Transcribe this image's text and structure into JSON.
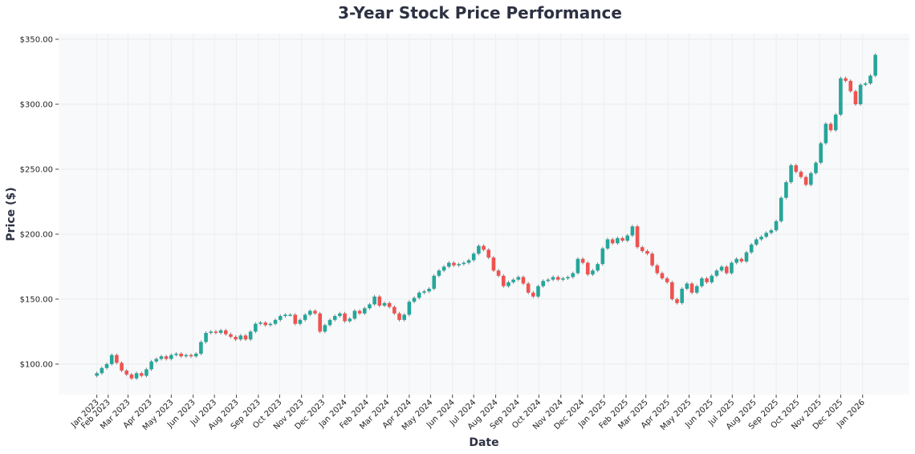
{
  "chart_data": {
    "type": "candlestick",
    "title": "3-Year Stock Price Performance",
    "xlabel": "Date",
    "ylabel": "Price ($)",
    "ylim": [
      76.5,
      354.3
    ],
    "xlim": [
      "2022-11-23",
      "2026-03-08"
    ],
    "yticks": [
      100,
      150,
      200,
      250,
      300,
      350
    ],
    "ytick_labels": [
      "$100.00",
      "$150.00",
      "$200.00",
      "$250.00",
      "$300.00",
      "$350.00"
    ],
    "xticks": [
      {
        "date": "2023-01-16",
        "label": "Jan 2023"
      },
      {
        "date": "2023-02-01",
        "label": "Feb 2023"
      },
      {
        "date": "2023-03-01",
        "label": "Mar 2023"
      },
      {
        "date": "2023-04-01",
        "label": "Apr 2023"
      },
      {
        "date": "2023-05-01",
        "label": "May 2023"
      },
      {
        "date": "2023-06-01",
        "label": "Jun 2023"
      },
      {
        "date": "2023-07-01",
        "label": "Jul 2023"
      },
      {
        "date": "2023-08-01",
        "label": "Aug 2023"
      },
      {
        "date": "2023-09-01",
        "label": "Sep 2023"
      },
      {
        "date": "2023-10-01",
        "label": "Oct 2023"
      },
      {
        "date": "2023-11-01",
        "label": "Nov 2023"
      },
      {
        "date": "2023-12-01",
        "label": "Dec 2023"
      },
      {
        "date": "2024-01-01",
        "label": "Jan 2024"
      },
      {
        "date": "2024-02-01",
        "label": "Feb 2024"
      },
      {
        "date": "2024-03-01",
        "label": "Mar 2024"
      },
      {
        "date": "2024-04-01",
        "label": "Apr 2024"
      },
      {
        "date": "2024-05-01",
        "label": "May 2024"
      },
      {
        "date": "2024-06-01",
        "label": "Jun 2024"
      },
      {
        "date": "2024-07-01",
        "label": "Jul 2024"
      },
      {
        "date": "2024-08-01",
        "label": "Aug 2024"
      },
      {
        "date": "2024-09-01",
        "label": "Sep 2024"
      },
      {
        "date": "2024-10-01",
        "label": "Oct 2024"
      },
      {
        "date": "2024-11-01",
        "label": "Nov 2024"
      },
      {
        "date": "2024-12-01",
        "label": "Dec 2024"
      },
      {
        "date": "2025-01-01",
        "label": "Jan 2025"
      },
      {
        "date": "2025-02-01",
        "label": "Feb 2025"
      },
      {
        "date": "2025-03-01",
        "label": "Mar 2025"
      },
      {
        "date": "2025-04-01",
        "label": "Apr 2025"
      },
      {
        "date": "2025-05-01",
        "label": "May 2025"
      },
      {
        "date": "2025-06-01",
        "label": "Jun 2025"
      },
      {
        "date": "2025-07-01",
        "label": "Jul 2025"
      },
      {
        "date": "2025-08-01",
        "label": "Aug 2025"
      },
      {
        "date": "2025-09-01",
        "label": "Sep 2025"
      },
      {
        "date": "2025-10-01",
        "label": "Oct 2025"
      },
      {
        "date": "2025-11-01",
        "label": "Nov 2025"
      },
      {
        "date": "2025-12-01",
        "label": "Dec 2025"
      },
      {
        "date": "2026-01-01",
        "label": "Jan 2026"
      }
    ],
    "grid": true,
    "colors": {
      "up": "#26a69a",
      "down": "#ef5350",
      "plot_bg": "#f8f9fb"
    },
    "open_first": 91,
    "closes": [
      [
        "2023-01-16",
        93
      ],
      [
        "2023-01-23",
        97
      ],
      [
        "2023-01-30",
        100
      ],
      [
        "2023-02-06",
        107
      ],
      [
        "2023-02-13",
        101
      ],
      [
        "2023-02-20",
        95
      ],
      [
        "2023-02-27",
        92
      ],
      [
        "2023-03-06",
        89
      ],
      [
        "2023-03-13",
        93
      ],
      [
        "2023-03-20",
        91
      ],
      [
        "2023-03-27",
        96
      ],
      [
        "2023-04-03",
        102
      ],
      [
        "2023-04-10",
        104
      ],
      [
        "2023-04-17",
        106
      ],
      [
        "2023-04-24",
        104
      ],
      [
        "2023-05-01",
        107
      ],
      [
        "2023-05-08",
        108
      ],
      [
        "2023-05-15",
        106
      ],
      [
        "2023-05-22",
        107
      ],
      [
        "2023-05-29",
        106
      ],
      [
        "2023-06-05",
        108
      ],
      [
        "2023-06-12",
        117
      ],
      [
        "2023-06-19",
        124
      ],
      [
        "2023-06-26",
        125
      ],
      [
        "2023-07-03",
        124
      ],
      [
        "2023-07-10",
        126
      ],
      [
        "2023-07-17",
        123
      ],
      [
        "2023-07-24",
        121
      ],
      [
        "2023-07-31",
        119
      ],
      [
        "2023-08-07",
        122
      ],
      [
        "2023-08-14",
        119
      ],
      [
        "2023-08-21",
        125
      ],
      [
        "2023-08-28",
        131
      ],
      [
        "2023-09-04",
        132
      ],
      [
        "2023-09-11",
        130
      ],
      [
        "2023-09-18",
        131
      ],
      [
        "2023-09-25",
        134
      ],
      [
        "2023-10-02",
        137
      ],
      [
        "2023-10-09",
        138
      ],
      [
        "2023-10-16",
        138
      ],
      [
        "2023-10-23",
        131
      ],
      [
        "2023-10-30",
        134
      ],
      [
        "2023-11-06",
        138
      ],
      [
        "2023-11-13",
        141
      ],
      [
        "2023-11-20",
        139
      ],
      [
        "2023-11-27",
        125
      ],
      [
        "2023-12-04",
        130
      ],
      [
        "2023-12-11",
        134
      ],
      [
        "2023-12-18",
        137
      ],
      [
        "2023-12-25",
        139
      ],
      [
        "2024-01-01",
        133
      ],
      [
        "2024-01-08",
        135
      ],
      [
        "2024-01-15",
        141
      ],
      [
        "2024-01-22",
        139
      ],
      [
        "2024-01-29",
        143
      ],
      [
        "2024-02-05",
        146
      ],
      [
        "2024-02-12",
        152
      ],
      [
        "2024-02-19",
        145
      ],
      [
        "2024-02-26",
        147
      ],
      [
        "2024-03-04",
        144
      ],
      [
        "2024-03-11",
        139
      ],
      [
        "2024-03-18",
        134
      ],
      [
        "2024-03-25",
        138
      ],
      [
        "2024-04-01",
        148
      ],
      [
        "2024-04-08",
        151
      ],
      [
        "2024-04-15",
        155
      ],
      [
        "2024-04-22",
        156
      ],
      [
        "2024-04-29",
        158
      ],
      [
        "2024-05-06",
        168
      ],
      [
        "2024-05-13",
        172
      ],
      [
        "2024-05-20",
        175
      ],
      [
        "2024-05-27",
        178
      ],
      [
        "2024-06-03",
        176
      ],
      [
        "2024-06-10",
        177
      ],
      [
        "2024-06-17",
        178
      ],
      [
        "2024-06-24",
        180
      ],
      [
        "2024-07-01",
        185
      ],
      [
        "2024-07-08",
        191
      ],
      [
        "2024-07-15",
        188
      ],
      [
        "2024-07-22",
        182
      ],
      [
        "2024-07-29",
        172
      ],
      [
        "2024-08-05",
        168
      ],
      [
        "2024-08-12",
        160
      ],
      [
        "2024-08-19",
        163
      ],
      [
        "2024-08-26",
        165
      ],
      [
        "2024-09-02",
        167
      ],
      [
        "2024-09-09",
        162
      ],
      [
        "2024-09-16",
        155
      ],
      [
        "2024-09-23",
        152
      ],
      [
        "2024-09-30",
        160
      ],
      [
        "2024-10-07",
        164
      ],
      [
        "2024-10-14",
        165
      ],
      [
        "2024-10-21",
        167
      ],
      [
        "2024-10-28",
        165
      ],
      [
        "2024-11-04",
        166
      ],
      [
        "2024-11-11",
        167
      ],
      [
        "2024-11-18",
        170
      ],
      [
        "2024-11-25",
        181
      ],
      [
        "2024-12-02",
        178
      ],
      [
        "2024-12-09",
        169
      ],
      [
        "2024-12-16",
        172
      ],
      [
        "2024-12-23",
        177
      ],
      [
        "2024-12-30",
        189
      ],
      [
        "2025-01-06",
        196
      ],
      [
        "2025-01-13",
        193
      ],
      [
        "2025-01-20",
        197
      ],
      [
        "2025-01-27",
        195
      ],
      [
        "2025-02-03",
        199
      ],
      [
        "2025-02-10",
        206
      ],
      [
        "2025-02-17",
        190
      ],
      [
        "2025-02-24",
        187
      ],
      [
        "2025-03-03",
        185
      ],
      [
        "2025-03-10",
        176
      ],
      [
        "2025-03-17",
        170
      ],
      [
        "2025-03-24",
        166
      ],
      [
        "2025-03-31",
        163
      ],
      [
        "2025-04-07",
        150
      ],
      [
        "2025-04-14",
        147
      ],
      [
        "2025-04-21",
        158
      ],
      [
        "2025-04-28",
        162
      ],
      [
        "2025-05-05",
        155
      ],
      [
        "2025-05-12",
        160
      ],
      [
        "2025-05-19",
        166
      ],
      [
        "2025-05-26",
        163
      ],
      [
        "2025-06-02",
        168
      ],
      [
        "2025-06-09",
        172
      ],
      [
        "2025-06-16",
        175
      ],
      [
        "2025-06-23",
        170
      ],
      [
        "2025-06-30",
        178
      ],
      [
        "2025-07-07",
        181
      ],
      [
        "2025-07-14",
        179
      ],
      [
        "2025-07-21",
        186
      ],
      [
        "2025-07-28",
        192
      ],
      [
        "2025-08-04",
        196
      ],
      [
        "2025-08-11",
        198
      ],
      [
        "2025-08-18",
        201
      ],
      [
        "2025-08-25",
        203
      ],
      [
        "2025-09-01",
        210
      ],
      [
        "2025-09-08",
        228
      ],
      [
        "2025-09-15",
        240
      ],
      [
        "2025-09-22",
        253
      ],
      [
        "2025-09-29",
        248
      ],
      [
        "2025-10-06",
        244
      ],
      [
        "2025-10-13",
        238
      ],
      [
        "2025-10-20",
        247
      ],
      [
        "2025-10-27",
        255
      ],
      [
        "2025-11-03",
        270
      ],
      [
        "2025-11-10",
        285
      ],
      [
        "2025-11-17",
        280
      ],
      [
        "2025-11-24",
        292
      ],
      [
        "2025-12-01",
        320
      ],
      [
        "2025-12-08",
        318
      ],
      [
        "2025-12-15",
        310
      ],
      [
        "2025-12-22",
        300
      ],
      [
        "2025-12-29",
        315
      ],
      [
        "2026-01-05",
        316
      ],
      [
        "2026-01-12",
        322
      ],
      [
        "2026-01-19",
        338
      ]
    ]
  }
}
